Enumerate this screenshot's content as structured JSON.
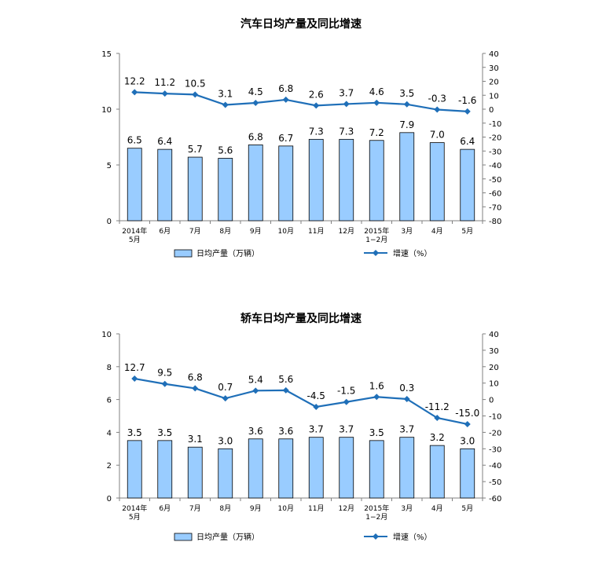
{
  "chart_data": [
    {
      "type": "bar",
      "title": "汽车日均产量及同比增速",
      "categories": [
        [
          "2014年",
          "5月"
        ],
        [
          "6月"
        ],
        [
          "7月"
        ],
        [
          "8月"
        ],
        [
          "9月"
        ],
        [
          "10月"
        ],
        [
          "11月"
        ],
        [
          "12月"
        ],
        [
          "2015年",
          "1−2月"
        ],
        [
          "3月"
        ],
        [
          "4月"
        ],
        [
          "5月"
        ]
      ],
      "series": [
        {
          "name": "日均产量（万辆）",
          "type": "bar",
          "axis": "left",
          "color": "#99CCFF",
          "values": [
            6.5,
            6.4,
            5.7,
            5.6,
            6.8,
            6.7,
            7.3,
            7.3,
            7.2,
            7.9,
            7.0,
            6.4
          ],
          "labels": [
            "6.5",
            "6.4",
            "5.7",
            "5.6",
            "6.8",
            "6.7",
            "7.3",
            "7.3",
            "7.2",
            "7.9",
            "7.0",
            "6.4"
          ]
        },
        {
          "name": "增速（%）",
          "type": "line",
          "axis": "right",
          "color": "#1F6FB8",
          "values": [
            12.2,
            11.2,
            10.5,
            3.1,
            4.5,
            6.8,
            2.6,
            3.7,
            4.6,
            3.5,
            -0.3,
            -1.6
          ],
          "labels": [
            "12.2",
            "11.2",
            "10.5",
            "3.1",
            "4.5",
            "6.8",
            "2.6",
            "3.7",
            "4.6",
            "3.5",
            "-0.3",
            "-1.6"
          ]
        }
      ],
      "ylim_left": [
        0,
        15
      ],
      "yticks_left": [
        "0",
        "5",
        "10",
        "15"
      ],
      "ylim_right": [
        -80,
        40
      ],
      "yticks_right": [
        "-80",
        "-70",
        "-60",
        "-50",
        "-40",
        "-30",
        "-20",
        "-10",
        "0",
        "10",
        "20",
        "30",
        "40"
      ],
      "legend": "bottom",
      "grid": false
    },
    {
      "type": "bar",
      "title": "轿车日均产量及同比增速",
      "categories": [
        [
          "2014年",
          "5月"
        ],
        [
          "6月"
        ],
        [
          "7月"
        ],
        [
          "8月"
        ],
        [
          "9月"
        ],
        [
          "10月"
        ],
        [
          "11月"
        ],
        [
          "12月"
        ],
        [
          "2015年",
          "1−2月"
        ],
        [
          "3月"
        ],
        [
          "4月"
        ],
        [
          "5月"
        ]
      ],
      "series": [
        {
          "name": "日均产量（万辆）",
          "type": "bar",
          "axis": "left",
          "color": "#99CCFF",
          "values": [
            3.5,
            3.5,
            3.1,
            3.0,
            3.6,
            3.6,
            3.7,
            3.7,
            3.5,
            3.7,
            3.2,
            3.0
          ],
          "labels": [
            "3.5",
            "3.5",
            "3.1",
            "3.0",
            "3.6",
            "3.6",
            "3.7",
            "3.7",
            "3.5",
            "3.7",
            "3.2",
            "3.0"
          ]
        },
        {
          "name": "增速（%）",
          "type": "line",
          "axis": "right",
          "color": "#1F6FB8",
          "values": [
            12.7,
            9.5,
            6.8,
            0.7,
            5.4,
            5.6,
            -4.5,
            -1.5,
            1.6,
            0.3,
            -11.2,
            -15.0
          ],
          "labels": [
            "12.7",
            "9.5",
            "6.8",
            "0.7",
            "5.4",
            "5.6",
            "-4.5",
            "-1.5",
            "1.6",
            "0.3",
            "-11.2",
            "-15.0"
          ]
        }
      ],
      "ylim_left": [
        0,
        10
      ],
      "yticks_left": [
        "0",
        "2",
        "4",
        "6",
        "8",
        "10"
      ],
      "ylim_right": [
        -60,
        40
      ],
      "yticks_right": [
        "-60",
        "-50",
        "-40",
        "-30",
        "-20",
        "-10",
        "0",
        "10",
        "20",
        "30",
        "40"
      ],
      "legend": "bottom",
      "grid": false
    }
  ]
}
